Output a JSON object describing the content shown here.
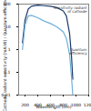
{
  "chart_data": {
    "type": "line",
    "x_label": "Wavelength (nm)",
    "y_label": "Cathode radiant sensitivity (mA/W) / Quantum efficiency (%)",
    "x": [
      160,
      200,
      250,
      300,
      400,
      500,
      600,
      700,
      800,
      850,
      900,
      930,
      950
    ],
    "series": [
      {
        "name": "Sensitivity radiant of cathode",
        "color": "#1a3a6b",
        "values": [
          2,
          20,
          60,
          80,
          90,
          85,
          80,
          70,
          50,
          30,
          5,
          0.5,
          0.05
        ]
      },
      {
        "name": "Quantum efficiency",
        "color": "#6fb0d8",
        "values": [
          1,
          12,
          30,
          32,
          25,
          18,
          14,
          10,
          6,
          3,
          0.6,
          0.06,
          0.01
        ]
      }
    ],
    "log": "y",
    "xlim": [
      100,
      1200
    ],
    "xticks": [
      200,
      400,
      600,
      800,
      1000,
      1200
    ],
    "ylim": [
      0.01,
      100
    ],
    "yticks": [
      0.01,
      0.1,
      1,
      10,
      100
    ]
  }
}
